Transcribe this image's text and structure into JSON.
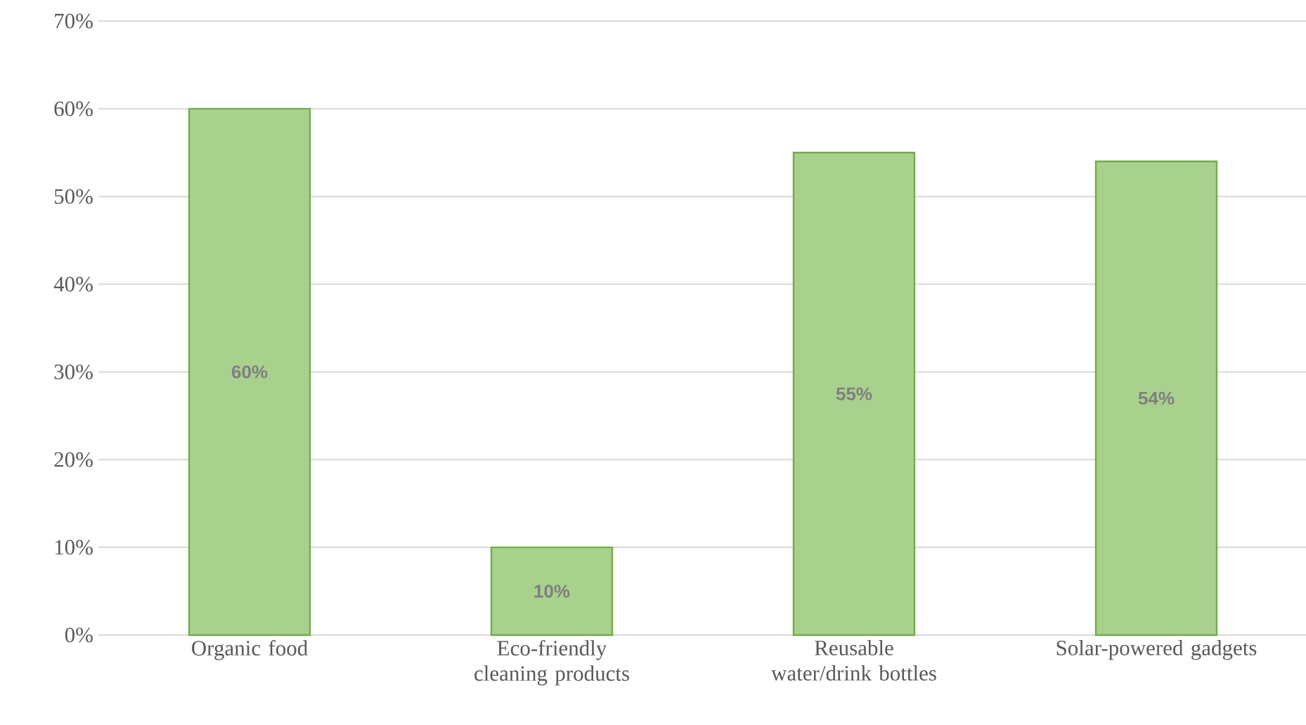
{
  "chart_data": {
    "type": "bar",
    "categories": [
      "Organic food",
      "Eco-friendly cleaning products",
      "Reusable water/drink bottles",
      "Solar-powered gadgets"
    ],
    "values": [
      60,
      10,
      55,
      54
    ],
    "value_labels": [
      "60%",
      "10%",
      "55%",
      "54%"
    ],
    "color": "#a9d18e",
    "ylim": [
      0,
      70
    ],
    "yticks": [
      {
        "value": 0,
        "label": "0%"
      },
      {
        "value": 10,
        "label": "10%"
      },
      {
        "value": 20,
        "label": "20%"
      },
      {
        "value": 30,
        "label": "30%"
      },
      {
        "value": 40,
        "label": "40%"
      },
      {
        "value": 50,
        "label": "50%"
      },
      {
        "value": 60,
        "label": "60%"
      },
      {
        "value": 70,
        "label": "70%"
      }
    ],
    "grid": "y"
  }
}
